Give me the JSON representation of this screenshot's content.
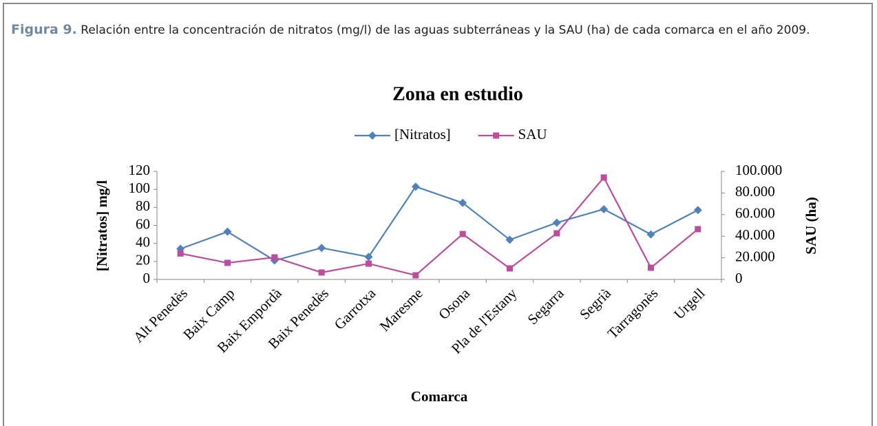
{
  "figure": {
    "label": "Figura 9.",
    "caption": "Relación entre la concentración de nitratos (mg/l) de las aguas subterráneas y la SAU (ha) de cada comarca en el año 2009."
  },
  "chart_data": {
    "type": "line",
    "title": "Zona en estudio",
    "x_label": "Comarca",
    "y_label": "[Nitratos] mg/l",
    "y2_label": "SAU (ha)",
    "categories": [
      "Alt Penedès",
      "Baix Camp",
      "Baix Empordà",
      "Baix Penedès",
      "Garrotxa",
      "Maresme",
      "Osona",
      "Pla de l'Estany",
      "Segarra",
      "Segrià",
      "Tarragonès",
      "Urgell"
    ],
    "series": [
      {
        "name": "[Nitratos]",
        "color": "#4f81bd",
        "marker": "diamond",
        "values": [
          34,
          53,
          21,
          35,
          25,
          103,
          85,
          44,
          63,
          78,
          50,
          77
        ]
      },
      {
        "name": "SAU",
        "color": "#be4b9b",
        "marker": "square",
        "axis": "y2",
        "values": [
          24000,
          15300,
          20400,
          6400,
          14600,
          3800,
          42000,
          10200,
          42700,
          94300,
          10800,
          46500
        ]
      }
    ],
    "ylim": [
      0,
      120
    ],
    "yticks": [
      0,
      20,
      40,
      60,
      80,
      100,
      120
    ],
    "y2lim": [
      0,
      100000
    ],
    "y2ticks": [
      0,
      {
        "value": 20000,
        "label": "20.000"
      },
      {
        "value": 40000,
        "label": "40.000"
      },
      {
        "value": 60000,
        "label": "60.000"
      },
      {
        "value": 80000,
        "label": "80.000"
      },
      {
        "value": 100000,
        "label": "100.000"
      }
    ],
    "grid": false,
    "legend": "top"
  }
}
